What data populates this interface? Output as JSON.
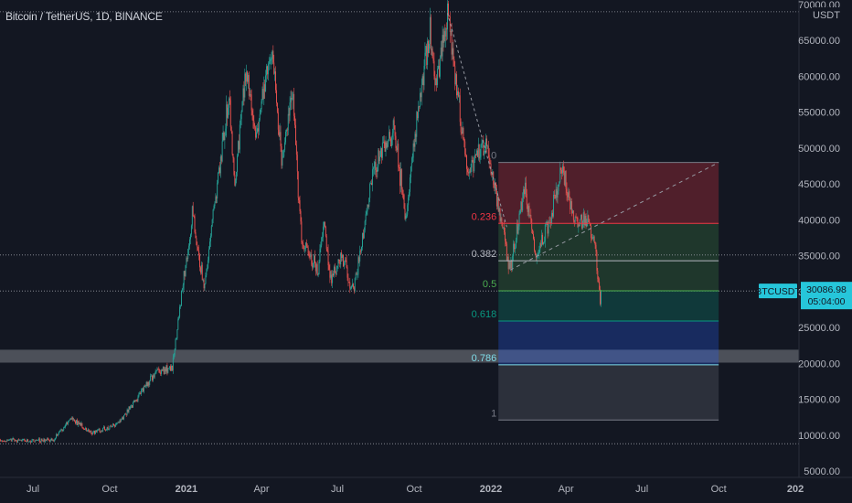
{
  "header": {
    "title": "Bitcoin / TetherUS, 1D, BINANCE",
    "currency": "USDT"
  },
  "price_tag": {
    "symbol": "BTCUSDT",
    "price": "30086.98",
    "countdown": "05:04:00",
    "color": "#26c6da"
  },
  "colors": {
    "background": "#131722",
    "up": "#26a69a",
    "down": "#ef5350",
    "axis_text": "#b2b5be"
  },
  "chart_data": {
    "type": "candlestick",
    "title": "Bitcoin / TetherUS, 1D, BINANCE",
    "y_axis": {
      "unit": "USDT",
      "ylim": [
        5000,
        70000
      ],
      "tick_labels": [
        "70000.00",
        "65000.00",
        "60000.00",
        "55000.00",
        "50000.00",
        "45000.00",
        "40000.00",
        "35000.00",
        "30000.00",
        "25000.00",
        "20000.00",
        "15000.00",
        "10000.00",
        "5000.00"
      ],
      "ticks": [
        70000,
        65000,
        60000,
        55000,
        50000,
        45000,
        40000,
        35000,
        30000,
        25000,
        20000,
        15000,
        10000,
        5000
      ]
    },
    "x_axis": {
      "range": [
        "2020-05-15",
        "2022-12-31"
      ],
      "ticks": [
        {
          "label": "Jul",
          "date": "2020-07-01",
          "bold": false
        },
        {
          "label": "Oct",
          "date": "2020-10-01",
          "bold": false
        },
        {
          "label": "2021",
          "date": "2021-01-01",
          "bold": true
        },
        {
          "label": "Apr",
          "date": "2021-04-01",
          "bold": false
        },
        {
          "label": "Jul",
          "date": "2021-07-01",
          "bold": false
        },
        {
          "label": "Oct",
          "date": "2021-10-01",
          "bold": false
        },
        {
          "label": "2022",
          "date": "2022-01-01",
          "bold": true
        },
        {
          "label": "Apr",
          "date": "2022-04-01",
          "bold": false
        },
        {
          "label": "Jul",
          "date": "2022-07-01",
          "bold": false
        },
        {
          "label": "Oct",
          "date": "2022-10-01",
          "bold": false
        },
        {
          "label": "202",
          "date": "2023-01-01",
          "bold": true
        }
      ]
    },
    "price_path": [
      {
        "date": "2020-05-15",
        "price": 9200
      },
      {
        "date": "2020-07-25",
        "price": 9300
      },
      {
        "date": "2020-08-17",
        "price": 12300
      },
      {
        "date": "2020-09-08",
        "price": 10300
      },
      {
        "date": "2020-10-10",
        "price": 11400
      },
      {
        "date": "2020-11-25",
        "price": 18800
      },
      {
        "date": "2020-12-15",
        "price": 19400
      },
      {
        "date": "2021-01-08",
        "price": 40800
      },
      {
        "date": "2021-01-22",
        "price": 30500
      },
      {
        "date": "2021-02-21",
        "price": 57000
      },
      {
        "date": "2021-02-28",
        "price": 45000
      },
      {
        "date": "2021-03-13",
        "price": 61000
      },
      {
        "date": "2021-03-25",
        "price": 51500
      },
      {
        "date": "2021-04-14",
        "price": 64000
      },
      {
        "date": "2021-04-25",
        "price": 47500
      },
      {
        "date": "2021-05-08",
        "price": 58000
      },
      {
        "date": "2021-05-19",
        "price": 37000
      },
      {
        "date": "2021-06-08",
        "price": 33000
      },
      {
        "date": "2021-06-15",
        "price": 40500
      },
      {
        "date": "2021-06-22",
        "price": 31500
      },
      {
        "date": "2021-07-07",
        "price": 35000
      },
      {
        "date": "2021-07-20",
        "price": 29800
      },
      {
        "date": "2021-08-14",
        "price": 47500
      },
      {
        "date": "2021-09-07",
        "price": 52500
      },
      {
        "date": "2021-09-21",
        "price": 40500
      },
      {
        "date": "2021-10-06",
        "price": 55500
      },
      {
        "date": "2021-10-20",
        "price": 66000
      },
      {
        "date": "2021-10-28",
        "price": 58500
      },
      {
        "date": "2021-11-10",
        "price": 68800
      },
      {
        "date": "2021-11-26",
        "price": 54000
      },
      {
        "date": "2021-12-04",
        "price": 47000
      },
      {
        "date": "2021-12-27",
        "price": 50800
      },
      {
        "date": "2022-01-10",
        "price": 41500
      },
      {
        "date": "2022-01-24",
        "price": 33000
      },
      {
        "date": "2022-02-10",
        "price": 44500
      },
      {
        "date": "2022-02-24",
        "price": 35000
      },
      {
        "date": "2022-03-10",
        "price": 39000
      },
      {
        "date": "2022-03-28",
        "price": 47500
      },
      {
        "date": "2022-04-11",
        "price": 39500
      },
      {
        "date": "2022-04-28",
        "price": 40000
      },
      {
        "date": "2022-05-06",
        "price": 36000
      },
      {
        "date": "2022-05-12",
        "price": 28500
      },
      {
        "date": "2022-05-13",
        "price": 30087
      }
    ],
    "fibonacci": {
      "range_dates": [
        "2022-01-10",
        "2022-10-01"
      ],
      "levels": [
        {
          "label": "0",
          "price": 48000,
          "color": "#787b86",
          "fill": "rgba(242,54,69,0.28)"
        },
        {
          "label": "0.236",
          "price": 39500,
          "color": "#f23645",
          "fill": "rgba(76,175,80,0.22)"
        },
        {
          "label": "0.382",
          "price": 34300,
          "color": "#b2b5be",
          "fill": "rgba(76,175,80,0.22)"
        },
        {
          "label": "0.5",
          "price": 30100,
          "color": "#4caf50",
          "fill": "rgba(8,153,129,0.26)"
        },
        {
          "label": "0.618",
          "price": 25900,
          "color": "#089981",
          "fill": "rgba(41,98,255,0.28)"
        },
        {
          "label": "0.786",
          "price": 19800,
          "color": "#80deea",
          "fill": "rgba(120,123,134,0.25)"
        },
        {
          "label": "1",
          "price": 12100,
          "color": "#787b86",
          "fill": null
        }
      ],
      "trend_line": {
        "from": {
          "date": "2022-01-24",
          "price": 33000
        },
        "to": {
          "date": "2022-10-01",
          "price": 48000
        }
      }
    },
    "support_zone": [
      20100,
      21900
    ],
    "dotted_levels": [
      69000,
      35100,
      30087,
      8800
    ],
    "downtrend_line": {
      "from": {
        "date": "2021-11-10",
        "price": 68800
      },
      "to": {
        "date": "2022-01-20",
        "price": 39000
      }
    }
  }
}
